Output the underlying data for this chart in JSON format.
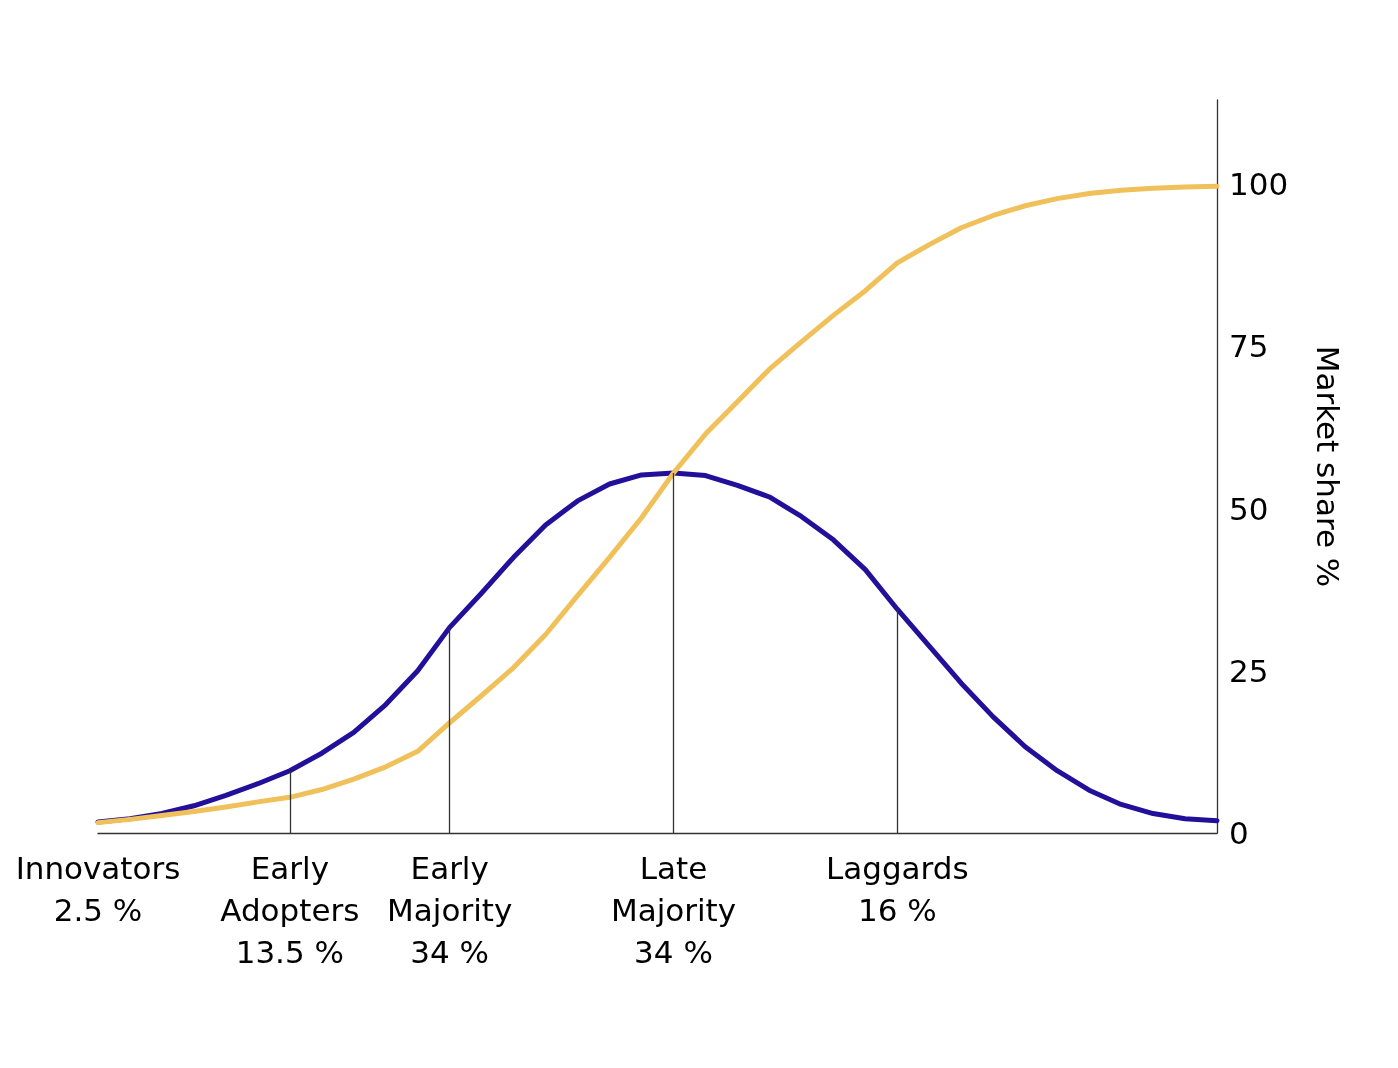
{
  "chart_data": {
    "type": "line",
    "ylabel": "Market share %",
    "categories": [
      "Innovators\n2.5 %",
      null,
      null,
      null,
      null,
      null,
      "Early\nAdopters\n13.5 %",
      null,
      null,
      null,
      null,
      "Early\nMajority\n34 %",
      null,
      null,
      null,
      null,
      null,
      null,
      "Late\nMajority\n34 %",
      null,
      null,
      null,
      null,
      null,
      null,
      "Laggards\n16 %",
      null,
      null,
      null,
      null,
      null,
      null,
      null,
      null,
      null,
      null
    ],
    "ylim": [
      0,
      113
    ],
    "yticks": [
      0,
      25,
      50,
      75,
      100
    ],
    "marker": "none",
    "line_style": "solid",
    "series": [
      {
        "color": "#22109a",
        "values": [
          1.7,
          2.2,
          3.0,
          4.2,
          5.8,
          7.6,
          9.6,
          12.3,
          15.5,
          19.8,
          25,
          31.7,
          37,
          42.5,
          47.5,
          51.2,
          53.8,
          55.2,
          55.5,
          55.1,
          53.6,
          51.8,
          48.8,
          45.2,
          40.6,
          34.5,
          28.8,
          23.1,
          17.9,
          13.3,
          9.6,
          6.6,
          4.4,
          3,
          2.2,
          1.9
        ]
      },
      {
        "color": "#f0c05a",
        "values": [
          1.6,
          2.1,
          2.7,
          3.3,
          4.0,
          4.8,
          5.5,
          6.7,
          8.3,
          10.2,
          12.6,
          17,
          21.2,
          25.5,
          30.6,
          36.6,
          42.5,
          48.6,
          55.5,
          61.5,
          66.5,
          71.5,
          75.7,
          79.8,
          83.6,
          87.9,
          90.7,
          93.3,
          95.2,
          96.7,
          97.8,
          98.6,
          99.1,
          99.4,
          99.6,
          99.7
        ]
      }
    ],
    "ref_lines": [
      {
        "axis": "x",
        "value": "Early\nAdopters\n13.5 %",
        "color": "#333333"
      },
      {
        "axis": "x",
        "value": "Early\nMajority\n34 %",
        "color": "#333333"
      },
      {
        "axis": "x",
        "value": "Late\nMajority\n34 %",
        "color": "#333333"
      },
      {
        "axis": "x",
        "value": "Laggards\n16 %",
        "color": "#333333"
      }
    ]
  }
}
